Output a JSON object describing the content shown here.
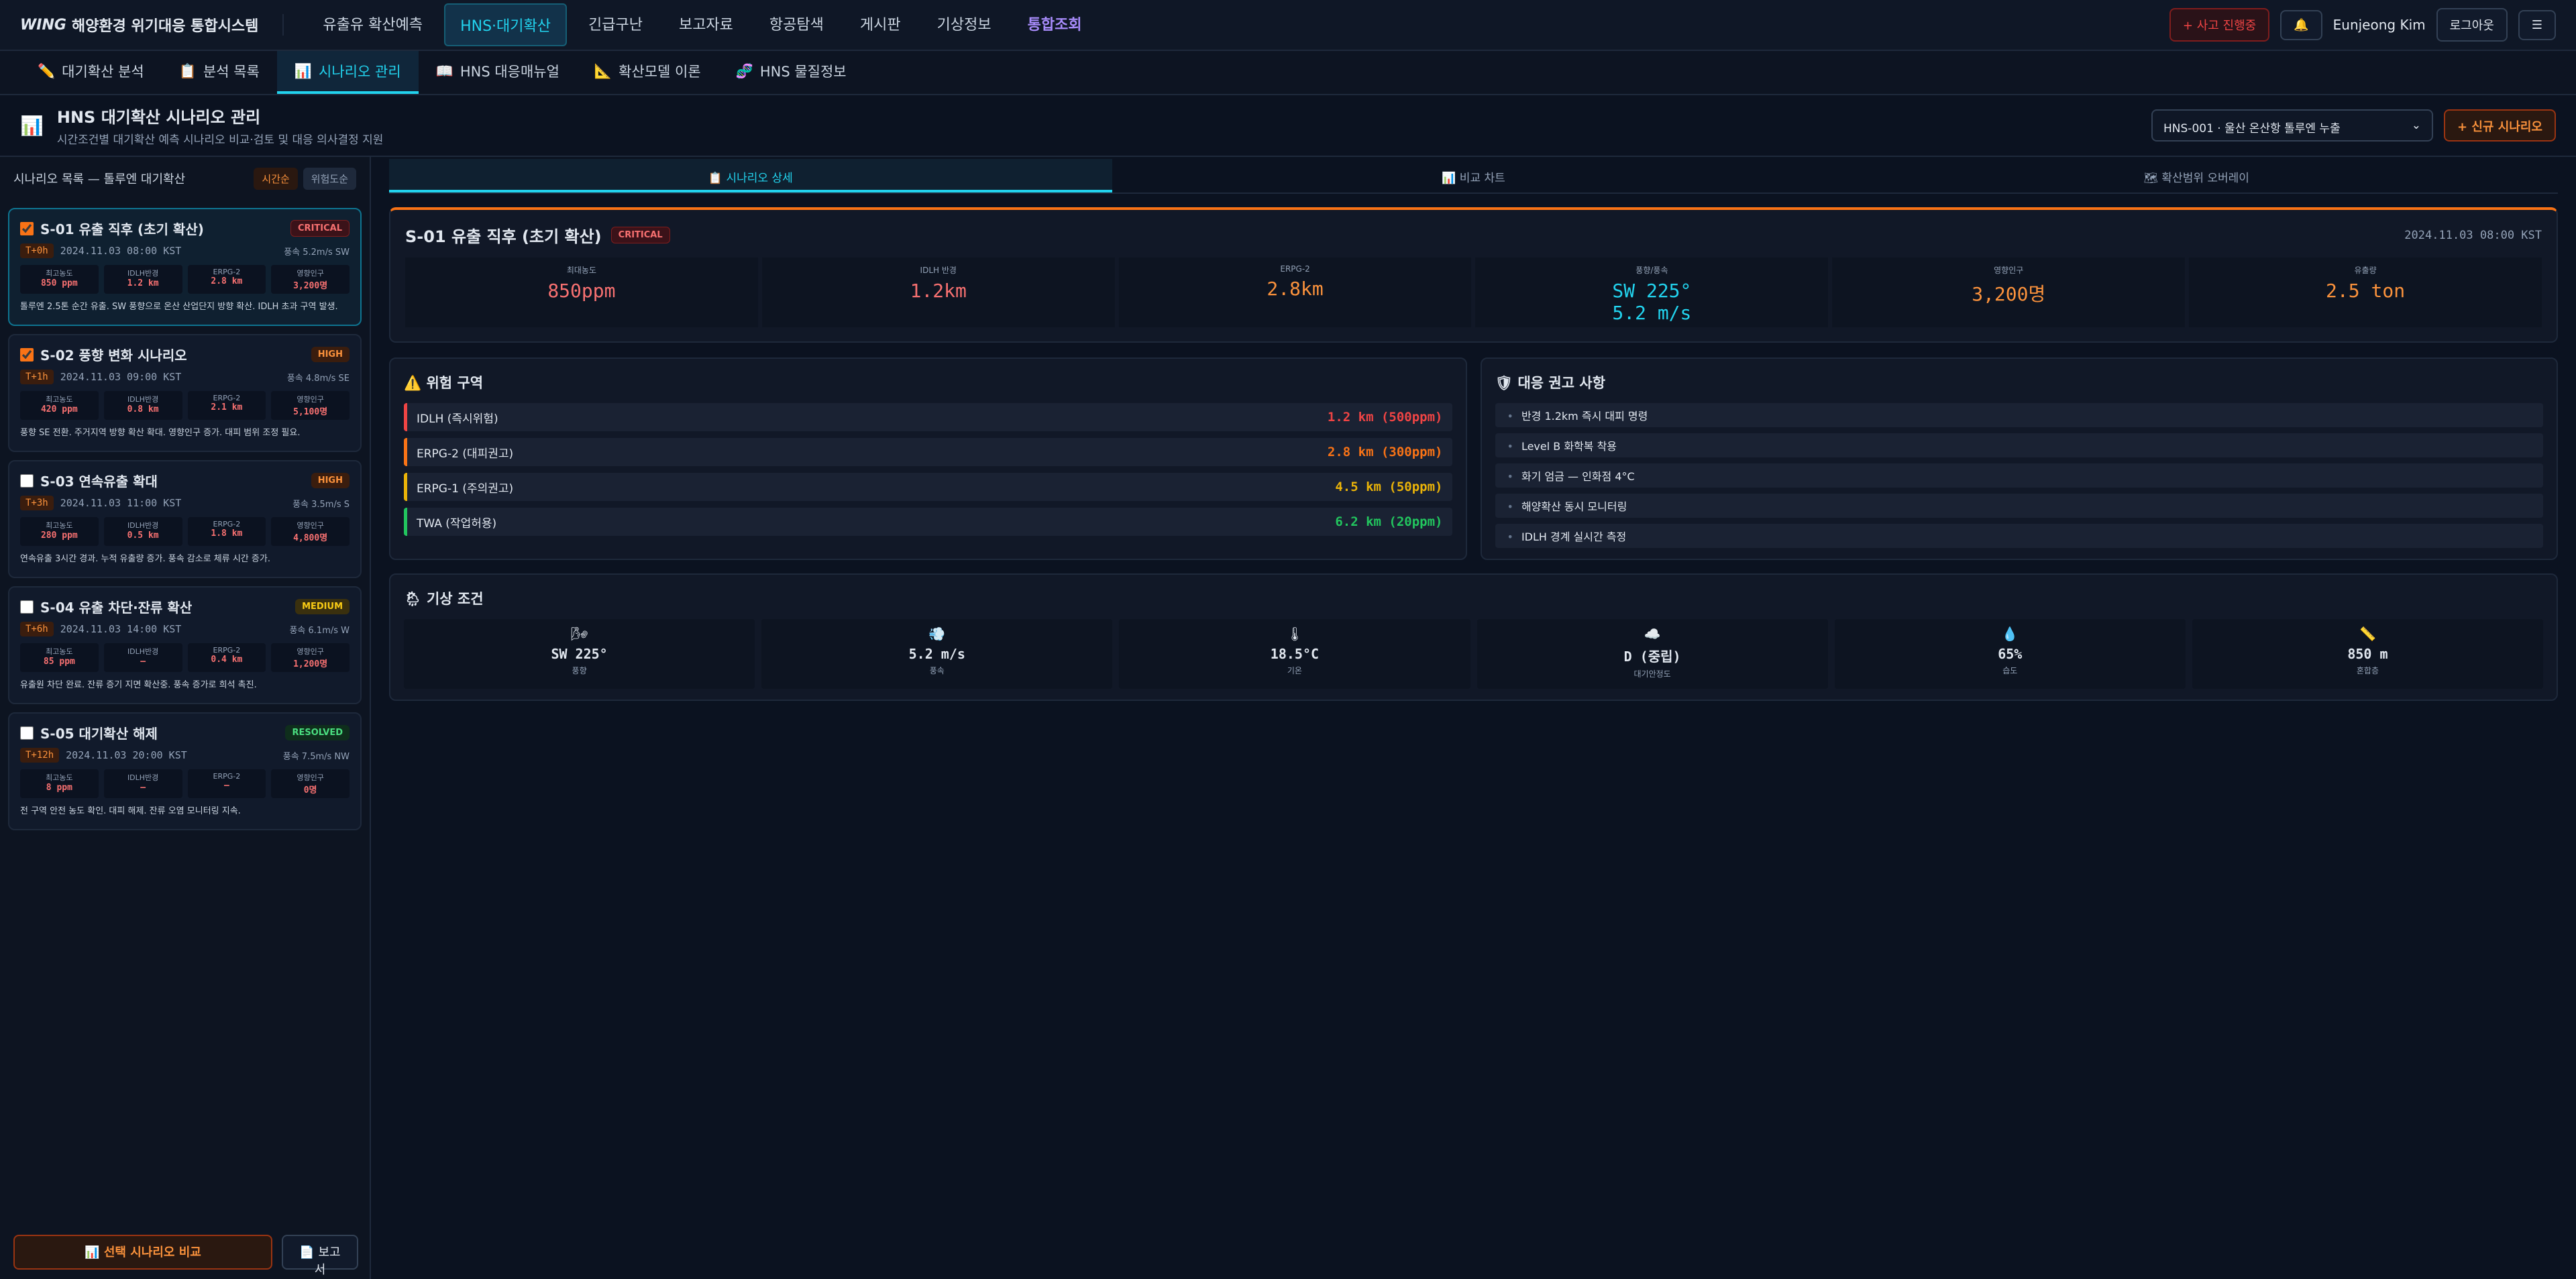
{
  "header": {
    "logo": "WING",
    "title": "해양환경 위기대응 통합시스템",
    "nav": [
      "유출유 확산예측",
      "HNS·대기확산",
      "긴급구난",
      "보고자료",
      "항공탐색",
      "게시판",
      "기상정보",
      "통합조회"
    ],
    "incident": "+ 사고 진행중",
    "bell": "🔔",
    "user": "Eunjeong Kim",
    "logout": "로그아웃",
    "menu": "☰"
  },
  "subnav": [
    {
      "icon": "✏️",
      "label": "대기확산 분석"
    },
    {
      "icon": "📋",
      "label": "분석 목록"
    },
    {
      "icon": "📊",
      "label": "시나리오 관리"
    },
    {
      "icon": "📖",
      "label": "HNS 대응매뉴얼"
    },
    {
      "icon": "📐",
      "label": "확산모델 이론"
    },
    {
      "icon": "🧬",
      "label": "HNS 물질정보"
    }
  ],
  "page": {
    "icon": "📊",
    "title": "HNS 대기확산 시나리오 관리",
    "subtitle": "시간조건별 대기확산 예측 시나리오 비교·검토 및 대응 의사결정 지원",
    "select": "HNS-001 · 울산 온산항 톨루엔 누출",
    "new_button": "+ 신규 시나리오"
  },
  "sidebar": {
    "heading": "시나리오 목록 — 톨루엔 대기확산",
    "sort": [
      "시간순",
      "위험도순"
    ],
    "metric_labels": [
      "최고농도",
      "IDLH반경",
      "ERPG-2",
      "영향인구"
    ],
    "scenarios": [
      {
        "name": "S-01 유출 직후 (초기 확산)",
        "badge": "CRITICAL",
        "selected": true,
        "active": true,
        "time": "T+0h",
        "datetime": "2024.11.03 08:00 KST",
        "wind": "풍속 5.2m/s SW",
        "metrics": [
          "850 ppm",
          "1.2 km",
          "2.8 km",
          "3,200명"
        ],
        "note": "톨루엔 2.5톤 순간 유출. SW 풍향으로 온산 산업단지 방향 확산. IDLH 초과 구역 발생."
      },
      {
        "name": "S-02 풍향 변화 시나리오",
        "badge": "HIGH",
        "selected": true,
        "active": false,
        "time": "T+1h",
        "datetime": "2024.11.03 09:00 KST",
        "wind": "풍속 4.8m/s SE",
        "metrics": [
          "420 ppm",
          "0.8 km",
          "2.1 km",
          "5,100명"
        ],
        "note": "풍향 SE 전환. 주거지역 방향 확산 확대. 영향인구 증가. 대피 범위 조정 필요."
      },
      {
        "name": "S-03 연속유출 확대",
        "badge": "HIGH",
        "selected": false,
        "active": false,
        "time": "T+3h",
        "datetime": "2024.11.03 11:00 KST",
        "wind": "풍속 3.5m/s S",
        "metrics": [
          "280 ppm",
          "0.5 km",
          "1.8 km",
          "4,800명"
        ],
        "note": "연속유출 3시간 경과. 누적 유출량 증가. 풍속 감소로 체류 시간 증가."
      },
      {
        "name": "S-04 유출 차단·잔류 확산",
        "badge": "MEDIUM",
        "selected": false,
        "active": false,
        "time": "T+6h",
        "datetime": "2024.11.03 14:00 KST",
        "wind": "풍속 6.1m/s W",
        "metrics": [
          "85 ppm",
          "—",
          "0.4 km",
          "1,200명"
        ],
        "note": "유출원 차단 완료. 잔류 증기 지면 확산중. 풍속 증가로 희석 촉진."
      },
      {
        "name": "S-05 대기확산 해제",
        "badge": "RESOLVED",
        "selected": false,
        "active": false,
        "time": "T+12h",
        "datetime": "2024.11.03 20:00 KST",
        "wind": "풍속 7.5m/s NW",
        "metrics": [
          "8 ppm",
          "—",
          "—",
          "0명"
        ],
        "note": "전 구역 안전 농도 확인. 대피 해제. 잔류 오염 모니터링 지속."
      }
    ],
    "compare_button": "📊 선택 시나리오 비교",
    "report_button": "📄 보고서"
  },
  "tabs": [
    "📋 시나리오 상세",
    "📊 비교 차트",
    "🗺 확산범위 오버레이"
  ],
  "detail": {
    "title": "S-01 유출 직후 (초기 확산)",
    "badge": "CRITICAL",
    "datetime": "2024.11.03 08:00 KST",
    "stats": [
      {
        "label": "최대농도",
        "value": "850ppm",
        "color": "#f87171"
      },
      {
        "label": "IDLH 반경",
        "value": "1.2km",
        "color": "#f87171"
      },
      {
        "label": "ERPG-2",
        "value": "2.8km",
        "color": "#fb923c"
      },
      {
        "label": "풍향/풍속",
        "value": "SW 225°",
        "value2": "5.2 m/s",
        "color": "#22d3ee"
      },
      {
        "label": "영향인구",
        "value": "3,200명",
        "color": "#fb923c"
      },
      {
        "label": "유출량",
        "value": "2.5 ton",
        "color": "#fb923c"
      }
    ]
  },
  "hazard": {
    "title": "⚠️ 위험 구역",
    "rows": [
      {
        "name": "IDLH (즉시위험)",
        "value": "1.2 km (500ppm)",
        "color": "#ef4444"
      },
      {
        "name": "ERPG-2 (대피권고)",
        "value": "2.8 km (300ppm)",
        "color": "#f97316"
      },
      {
        "name": "ERPG-1 (주의권고)",
        "value": "4.5 km (50ppm)",
        "color": "#eab308"
      },
      {
        "name": "TWA (작업허용)",
        "value": "6.2 km (20ppm)",
        "color": "#22c55e"
      }
    ]
  },
  "recommend": {
    "title": "🛡 대응 권고 사항",
    "items": [
      "반경 1.2km 즉시 대피 명령",
      "Level B 화학복 착용",
      "화기 엄금 — 인화점 4°C",
      "해양확산 동시 모니터링",
      "IDLH 경계 실시간 측정"
    ]
  },
  "weather": {
    "title": "🌦 기상 조건",
    "items": [
      {
        "icon": "🌬",
        "value": "SW 225°",
        "label": "풍향"
      },
      {
        "icon": "💨",
        "value": "5.2 m/s",
        "label": "풍속"
      },
      {
        "icon": "🌡",
        "value": "18.5°C",
        "label": "기온"
      },
      {
        "icon": "☁️",
        "value": "D (중립)",
        "label": "대기안정도"
      },
      {
        "icon": "💧",
        "value": "65%",
        "label": "습도"
      },
      {
        "icon": "📏",
        "value": "850 m",
        "label": "혼합층"
      }
    ]
  }
}
